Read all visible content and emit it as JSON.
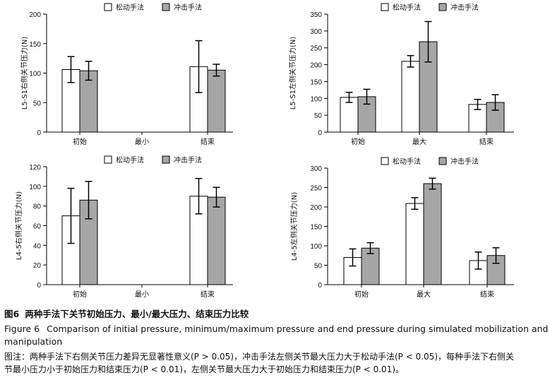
{
  "legend": {
    "series1": "松动手法",
    "series2": "冲击手法"
  },
  "chart_data": [
    {
      "type": "bar",
      "ylabel": "L5-S1右侧关节压力(N)",
      "yticks": [
        0,
        50,
        100,
        150,
        200
      ],
      "ylim": [
        0,
        200
      ],
      "categories": [
        "初始",
        "最小",
        "结束"
      ],
      "series": [
        {
          "name": "松动手法",
          "values": [
            106,
            null,
            111
          ],
          "errors": [
            22,
            null,
            44
          ]
        },
        {
          "name": "冲击手法",
          "values": [
            104,
            null,
            105
          ],
          "errors": [
            16,
            null,
            10
          ]
        }
      ]
    },
    {
      "type": "bar",
      "ylabel": "L5-S1左侧关节压力(N)",
      "yticks": [
        0,
        50,
        100,
        150,
        200,
        250,
        300,
        350
      ],
      "ylim": [
        0,
        350
      ],
      "categories": [
        "初始",
        "最大",
        "结束"
      ],
      "series": [
        {
          "name": "松动手法",
          "values": [
            103,
            210,
            82
          ],
          "errors": [
            15,
            17,
            15
          ]
        },
        {
          "name": "冲击手法",
          "values": [
            105,
            268,
            88
          ],
          "errors": [
            22,
            60,
            23
          ]
        }
      ]
    },
    {
      "type": "bar",
      "ylabel": "L4-5右侧关节压力(N)",
      "yticks": [
        0,
        20,
        40,
        60,
        80,
        100,
        120
      ],
      "ylim": [
        0,
        120
      ],
      "categories": [
        "初始",
        "最小",
        "结束"
      ],
      "series": [
        {
          "name": "松动手法",
          "values": [
            70,
            null,
            90
          ],
          "errors": [
            28,
            null,
            18
          ]
        },
        {
          "name": "冲击手法",
          "values": [
            86,
            null,
            89
          ],
          "errors": [
            19,
            null,
            10
          ]
        }
      ]
    },
    {
      "type": "bar",
      "ylabel": "L4-5左侧关节压力(N)",
      "yticks": [
        0,
        50,
        100,
        150,
        200,
        250,
        300
      ],
      "ylim": [
        0,
        300
      ],
      "categories": [
        "初始",
        "最大",
        "结束"
      ],
      "series": [
        {
          "name": "松动手法",
          "values": [
            70,
            209,
            62
          ],
          "errors": [
            22,
            15,
            22
          ]
        },
        {
          "name": "冲击手法",
          "values": [
            94,
            260,
            75
          ],
          "errors": [
            14,
            14,
            20
          ]
        }
      ]
    }
  ],
  "caption": {
    "cn_label": "图6",
    "cn_title": "两种手法下关节初始压力、最小/最大压力、结束压力比较",
    "en_label": "Figure 6",
    "en_title_line1": "Comparison of initial pressure, minimum/maximum pressure and end pressure during simulated mobilization and",
    "en_title_line2": "manipulation",
    "note_line1": "图注：两种手法下右侧关节压力差异无显著性意义(P > 0.05)，冲击手法左侧关节最大压力大于松动手法(P < 0.05)，每种手法下右侧关",
    "note_line2": "节最小压力小于初始压力和结束压力(P < 0.01)，左侧关节最大压力大于初始压力和结束压力(P < 0.01)。"
  },
  "colors": {
    "series1": "#ffffff",
    "series2": "#a6a6a6",
    "axis": "#000000"
  }
}
